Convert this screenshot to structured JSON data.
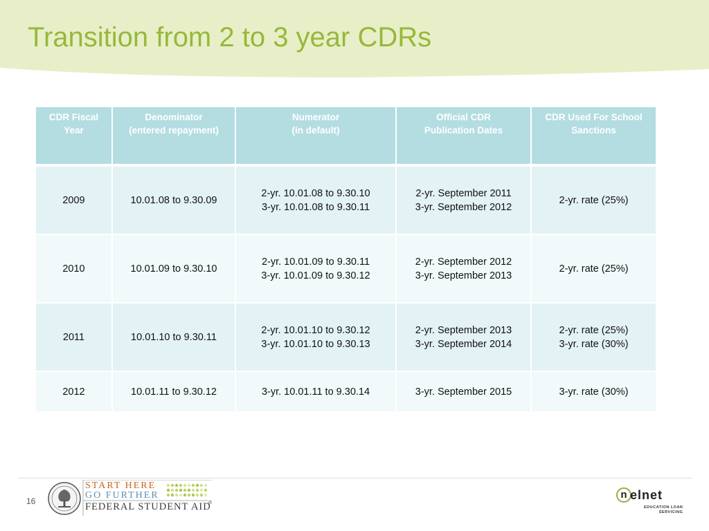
{
  "slide": {
    "title": "Transition from 2 to 3 year CDRs",
    "page_number": "16"
  },
  "colors": {
    "title": "#97b83a",
    "band": "#e8efc8",
    "header_bg": "#b3dde1",
    "row_odd": "#e3f2f4",
    "row_even": "#f1f9fa"
  },
  "table": {
    "headers": [
      [
        "CDR Fiscal",
        "Year"
      ],
      [
        "Denominator",
        "(entered repayment)"
      ],
      [
        "Numerator",
        "(in default)"
      ],
      [
        "Official CDR",
        "Publication Dates"
      ],
      [
        "CDR Used For School",
        "Sanctions"
      ]
    ],
    "rows": [
      [
        [
          "2009"
        ],
        [
          "10.01.08 to 9.30.09"
        ],
        [
          "2-yr.  10.01.08 to 9.30.10",
          "3-yr.  10.01.08 to 9.30.11"
        ],
        [
          "2-yr.  September 2011",
          "3-yr.  September 2012"
        ],
        [
          "2-yr. rate (25%)"
        ]
      ],
      [
        [
          "2010"
        ],
        [
          "10.01.09 to 9.30.10"
        ],
        [
          "2-yr.  10.01.09 to 9.30.11",
          "3-yr.  10.01.09 to 9.30.12"
        ],
        [
          "2-yr.  September 2012",
          "3-yr.  September 2013"
        ],
        [
          "2-yr. rate (25%)"
        ]
      ],
      [
        [
          "2011"
        ],
        [
          "10.01.10 to 9.30.11"
        ],
        [
          "2-yr.  10.01.10 to 9.30.12",
          "3-yr.  10.01.10 to 9.30.13"
        ],
        [
          "2-yr.  September 2013",
          "3-yr.  September 2014"
        ],
        [
          "2-yr. rate (25%)",
          "3-yr. rate (30%)"
        ]
      ],
      [
        [
          "2012"
        ],
        [
          "10.01.11 to 9.30.12"
        ],
        [
          "3-yr.  10.01.11 to 9.30.14"
        ],
        [
          "3-yr.  September 2015"
        ],
        [
          "3-yr. rate (30%)"
        ]
      ]
    ]
  },
  "footer": {
    "fsa_logo": {
      "line1": "START HERE",
      "line2": "GO FURTHER",
      "line3": "FEDERAL STUDENT AID",
      "icon": "department-seal-icon"
    },
    "nelnet_logo": {
      "circle_letter": "n",
      "word": "elnet",
      "tagline_1": "EDUCATION LOAN",
      "tagline_2": "SERVICING",
      "icon": "nelnet-logo-icon"
    }
  }
}
